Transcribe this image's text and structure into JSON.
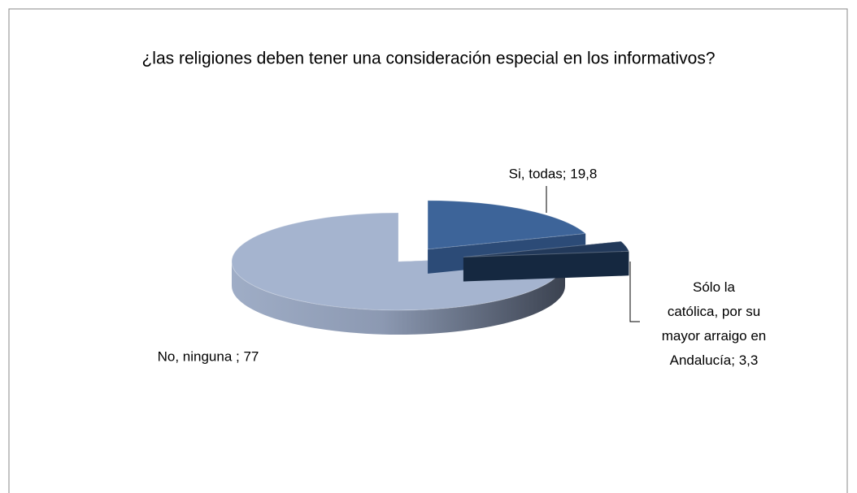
{
  "chart_data": {
    "type": "pie3d",
    "title": "¿las religiones deben tener una consideración especial en los informativos?",
    "values": [
      19.8,
      3.3,
      77
    ],
    "value_labels": [
      "Si, todas; 19,8",
      "Sólo la católica, por su mayor arraigo en Andalucía; 3,3",
      "No, ninguna ; 77"
    ],
    "colors": [
      "#3d6499",
      "#22395a",
      "#a5b4cf"
    ]
  }
}
